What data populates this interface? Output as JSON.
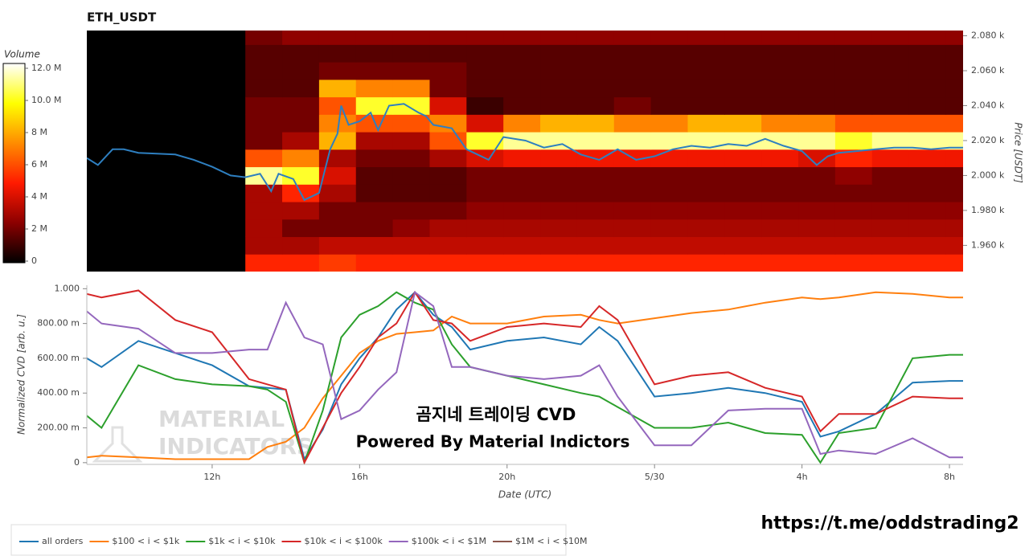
{
  "chart_data": [
    {
      "type": "heatmap",
      "title": "ETH_USDT",
      "y_label": "Price [USDT]",
      "xlim": [
        8.6,
        32.37
      ],
      "ylim": [
        1945,
        2083
      ],
      "yticks": [
        {
          "value": 1960,
          "label": "1.960 k"
        },
        {
          "value": 1980,
          "label": "1.980 k"
        },
        {
          "value": 2000,
          "label": "2.000 k"
        },
        {
          "value": 2020,
          "label": "2.020 k"
        },
        {
          "value": 2040,
          "label": "2.040 k"
        },
        {
          "value": 2060,
          "label": "2.060 k"
        },
        {
          "value": 2080,
          "label": "2.080 k"
        }
      ],
      "x_edges": [
        12.9,
        13.9,
        14.9,
        15.9,
        16.9,
        17.9,
        18.9,
        19.9,
        20.9,
        21.9,
        22.9,
        23.9,
        24.9,
        25.9,
        26.9,
        27.9,
        28.9,
        29.9,
        30.9,
        31.9,
        32.37
      ],
      "y_edges": [
        1945,
        1955,
        1965,
        1975,
        1985,
        1995,
        2005,
        2015,
        2025,
        2035,
        2045,
        2055,
        2065,
        2075,
        2085
      ],
      "z": [
        [
          5,
          5,
          5.5,
          5,
          5,
          5,
          5,
          5,
          5,
          5,
          5,
          5,
          5,
          5,
          5,
          5,
          5,
          5,
          5,
          5
        ],
        [
          3,
          3,
          3.5,
          3.5,
          3.5,
          3.5,
          3.5,
          3.5,
          3.5,
          3.5,
          3.5,
          3.5,
          3.5,
          3.5,
          3.5,
          3.5,
          3.5,
          3.5,
          3.5,
          3.5
        ],
        [
          3,
          2,
          2,
          2,
          2.5,
          3,
          3,
          3,
          3,
          3,
          3,
          3,
          3,
          3,
          3,
          3,
          3,
          3,
          3,
          3
        ],
        [
          3,
          3,
          2,
          2,
          2,
          2,
          2.5,
          2.5,
          2.5,
          2.5,
          2.5,
          2.5,
          2.5,
          2.5,
          2.5,
          2.5,
          2.5,
          2.5,
          2.5,
          2.5
        ],
        [
          3,
          5,
          3,
          1.5,
          1.5,
          1.5,
          2,
          2,
          2,
          2,
          2,
          2,
          2,
          2,
          2,
          2,
          2,
          2,
          2,
          2
        ],
        [
          11,
          10,
          4,
          1.5,
          1.5,
          1.5,
          2,
          2,
          2,
          2,
          2,
          2,
          2,
          2,
          2,
          2,
          2.5,
          2,
          2,
          2
        ],
        [
          6,
          7,
          3,
          2,
          2,
          3,
          4,
          4.5,
          4.5,
          4.5,
          4.5,
          4.5,
          4.5,
          4.5,
          4.5,
          4,
          5,
          4.5,
          4.5,
          4.5
        ],
        [
          2,
          3,
          8,
          3,
          3,
          6,
          10,
          11,
          11,
          11,
          11,
          11,
          11,
          11,
          11,
          11,
          10,
          11,
          11,
          11
        ],
        [
          2,
          2,
          7,
          6,
          6,
          7,
          4,
          7,
          8,
          8,
          7,
          7,
          8,
          8,
          7,
          7,
          6,
          6,
          6,
          6
        ],
        [
          2,
          2,
          6,
          10,
          10,
          4,
          1,
          1.5,
          1.5,
          1.5,
          2,
          1.5,
          1.5,
          1.5,
          1.5,
          1.5,
          1.5,
          1.5,
          1.5,
          1.5
        ],
        [
          1.5,
          1.5,
          8,
          7,
          7,
          2,
          1.5,
          1.5,
          1.5,
          1.5,
          1.5,
          1.5,
          1.5,
          1.5,
          1.5,
          1.5,
          1.5,
          1.5,
          1.5,
          1.5
        ],
        [
          1.5,
          1.5,
          2,
          2,
          2,
          2,
          1.5,
          1.5,
          1.5,
          1.5,
          1.5,
          1.5,
          1.5,
          1.5,
          1.5,
          1.5,
          1.5,
          1.5,
          1.5,
          1.5
        ],
        [
          1.5,
          1.5,
          1.5,
          1.5,
          1.5,
          1.5,
          1.5,
          1.5,
          1.5,
          1.5,
          1.5,
          1.5,
          1.5,
          1.5,
          1.5,
          1.5,
          1.5,
          1.5,
          1.5,
          1.5
        ],
        [
          2,
          2.5,
          2.5,
          2.5,
          2.5,
          2.5,
          2.5,
          2.5,
          2.5,
          2.5,
          2.5,
          2.5,
          2.5,
          2.5,
          2.5,
          2.5,
          2.5,
          2.5,
          2.5,
          2.5
        ]
      ],
      "colorbar": {
        "label": "Volume",
        "lim": [
          0,
          12
        ],
        "ticks": [
          0,
          {
            "value": 2,
            "label": "2 M"
          },
          {
            "value": 4,
            "label": "4 M"
          },
          {
            "value": 6,
            "label": "6 M"
          },
          {
            "value": 8,
            "label": "8 M"
          },
          {
            "value": 10,
            "label": "10.0 M"
          },
          {
            "value": 12,
            "label": "12.0 M"
          }
        ],
        "colors": [
          "#000000",
          "#8b0000",
          "#ff1a00",
          "#ff8c00",
          "#ffff00",
          "#ffffff"
        ]
      },
      "line": {
        "color": "#2e7fc0",
        "x": [
          8.6,
          8.9,
          9.3,
          9.6,
          10,
          11,
          11.5,
          12,
          12.5,
          12.9,
          13.3,
          13.6,
          13.8,
          14.2,
          14.5,
          14.9,
          15.2,
          15.4,
          15.5,
          15.7,
          16,
          16.3,
          16.5,
          16.8,
          17.2,
          17.6,
          17.8,
          18,
          18.5,
          18.9,
          19.1,
          19.5,
          19.9,
          20.5,
          21,
          21.5,
          22,
          22.5,
          23,
          23.5,
          24,
          24.5,
          25,
          25.5,
          26,
          26.5,
          27,
          27.5,
          28,
          28.4,
          28.7,
          29,
          29.5,
          30,
          30.5,
          31,
          31.5,
          32,
          32.37
        ],
        "values": [
          2010,
          2006,
          2015,
          2015,
          2013,
          2012,
          2009,
          2005,
          2000,
          1999,
          2001,
          1991,
          2001,
          1998,
          1986,
          1990,
          2015,
          2024,
          2040,
          2029,
          2031,
          2036,
          2026,
          2040,
          2041,
          2036,
          2034,
          2029,
          2027,
          2015,
          2013,
          2009,
          2022,
          2020,
          2016,
          2018,
          2012,
          2009,
          2015,
          2009,
          2011,
          2015,
          2017,
          2016,
          2018,
          2017,
          2021,
          2017,
          2014,
          2006,
          2011,
          2013,
          2014,
          2015,
          2016,
          2016,
          2015,
          2016,
          2016
        ]
      }
    },
    {
      "type": "line",
      "x_label": "Date (UTC)",
      "y_label": "Normalized CVD [arb. u.]",
      "xlim": [
        8.6,
        32.37
      ],
      "ylim": [
        -0.01,
        1.02
      ],
      "xticks": [
        {
          "value": 12,
          "label": "12h"
        },
        {
          "value": 16,
          "label": "16h"
        },
        {
          "value": 20,
          "label": "20h"
        },
        {
          "value": 24,
          "label": "5/30"
        },
        {
          "value": 28,
          "label": "4h"
        },
        {
          "value": 32,
          "label": "8h"
        }
      ],
      "yticks": [
        0,
        {
          "value": 0.2,
          "label": "200.00 m"
        },
        {
          "value": 0.4,
          "label": "400.00 m"
        },
        {
          "value": 0.6,
          "label": "600.00 m"
        },
        {
          "value": 0.8,
          "label": "800.00 m"
        },
        {
          "value": 1,
          "label": "1.000"
        }
      ],
      "x": [
        8.6,
        9,
        10,
        11,
        12,
        13,
        13.5,
        14,
        14.5,
        15,
        15.5,
        16,
        16.5,
        17,
        17.5,
        18,
        18.5,
        19,
        20,
        21,
        22,
        22.5,
        23,
        24,
        25,
        26,
        27,
        28,
        28.5,
        29,
        30,
        31,
        32,
        32.37
      ],
      "series": [
        {
          "name": "all orders",
          "color": "#1f77b4",
          "values": [
            0.6,
            0.55,
            0.7,
            0.63,
            0.56,
            0.44,
            0.43,
            0.42,
            0.02,
            0.19,
            0.45,
            0.6,
            0.72,
            0.88,
            0.98,
            0.85,
            0.78,
            0.65,
            0.7,
            0.72,
            0.68,
            0.78,
            0.7,
            0.38,
            0.4,
            0.43,
            0.4,
            0.35,
            0.15,
            0.18,
            0.28,
            0.46,
            0.47,
            0.47
          ]
        },
        {
          "name": "$100 < i < $1k",
          "color": "#ff7f0e",
          "values": [
            0.03,
            0.04,
            0.03,
            0.02,
            0.02,
            0.02,
            0.09,
            0.12,
            0.2,
            0.37,
            0.5,
            0.63,
            0.7,
            0.74,
            0.75,
            0.76,
            0.84,
            0.8,
            0.8,
            0.84,
            0.85,
            0.82,
            0.8,
            0.83,
            0.86,
            0.88,
            0.92,
            0.95,
            0.94,
            0.95,
            0.98,
            0.97,
            0.95,
            0.95
          ]
        },
        {
          "name": "$1k < i < $10k",
          "color": "#2ca02c",
          "values": [
            0.27,
            0.2,
            0.56,
            0.48,
            0.45,
            0.44,
            0.42,
            0.35,
            0,
            0.3,
            0.72,
            0.85,
            0.9,
            0.98,
            0.92,
            0.88,
            0.68,
            0.55,
            0.5,
            0.45,
            0.4,
            0.38,
            0.32,
            0.2,
            0.2,
            0.23,
            0.17,
            0.16,
            0,
            0.17,
            0.2,
            0.6,
            0.62,
            0.62
          ]
        },
        {
          "name": "$10k < i < $100k",
          "color": "#d62728",
          "values": [
            0.97,
            0.95,
            0.99,
            0.82,
            0.75,
            0.48,
            0.45,
            0.42,
            0,
            0.2,
            0.4,
            0.55,
            0.72,
            0.8,
            0.98,
            0.82,
            0.8,
            0.7,
            0.78,
            0.8,
            0.78,
            0.9,
            0.82,
            0.45,
            0.5,
            0.52,
            0.43,
            0.38,
            0.18,
            0.28,
            0.28,
            0.38,
            0.37,
            0.37
          ]
        },
        {
          "name": "$100k < i < $1M",
          "color": "#9467bd",
          "values": [
            0.87,
            0.8,
            0.77,
            0.63,
            0.63,
            0.65,
            0.65,
            0.92,
            0.72,
            0.68,
            0.25,
            0.3,
            0.42,
            0.52,
            0.98,
            0.9,
            0.55,
            0.55,
            0.5,
            0.48,
            0.5,
            0.56,
            0.38,
            0.1,
            0.1,
            0.3,
            0.31,
            0.31,
            0.05,
            0.07,
            0.05,
            0.14,
            0.03,
            0.03
          ]
        },
        {
          "name": "$1M < i < $10M",
          "color": "#8c564b",
          "values": [
            null,
            null,
            null,
            null,
            null,
            null,
            null,
            null,
            null,
            null,
            null,
            null,
            null,
            null,
            null,
            null,
            null,
            null,
            null,
            null,
            null,
            null,
            null,
            null,
            null,
            null,
            null,
            null,
            null,
            null,
            null,
            null,
            null,
            null
          ]
        }
      ],
      "legend": "bottom-left",
      "annotations": [
        "곰지네 트레이딩 CVD",
        "Powered By Material Indictors"
      ]
    }
  ],
  "watermark": [
    "MATERIAL",
    "INDICATORS"
  ],
  "footer_link": "https://t.me/oddstrading2"
}
